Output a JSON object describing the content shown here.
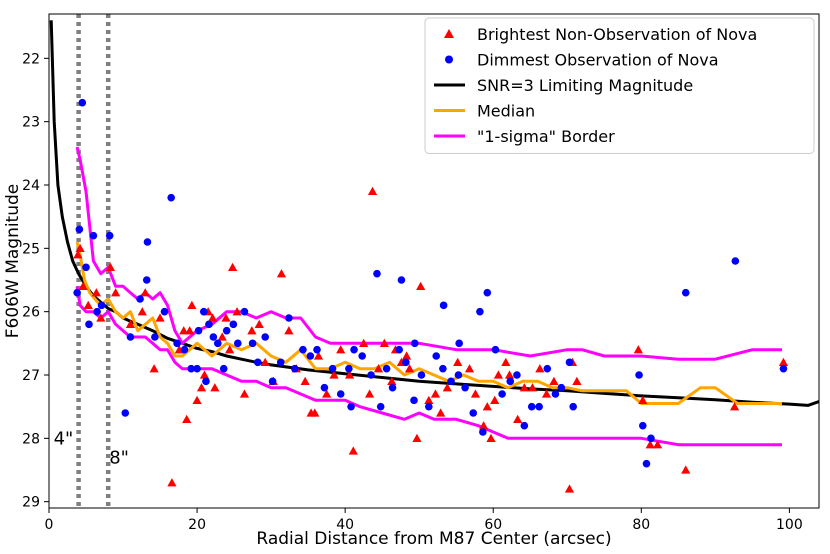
{
  "chart_data": {
    "type": "scatter",
    "xlabel": "Radial Distance from M87 Center (arcsec)",
    "ylabel": "F606W Magnitude",
    "xlim": [
      0,
      104
    ],
    "ylim": [
      29.1,
      21.3
    ],
    "y_inverted": true,
    "x_ticks": [
      0,
      20,
      40,
      60,
      80,
      100
    ],
    "y_ticks": [
      22,
      23,
      24,
      25,
      26,
      27,
      28,
      29
    ],
    "grid": false,
    "legend_position": "top-right",
    "legend": [
      {
        "label": "Brightest Non-Observation of Nova",
        "kind": "triangle",
        "color": "#ff0000"
      },
      {
        "label": "Dimmest Observation of Nova",
        "kind": "circle",
        "color": "#0000ff"
      },
      {
        "label": "SNR=3 Limiting Magnitude",
        "kind": "line",
        "color": "#000000"
      },
      {
        "label": "Median",
        "kind": "line",
        "color": "#ffa500"
      },
      {
        "label": "\"1-sigma\" Border",
        "kind": "line",
        "color": "#ff00ff"
      }
    ],
    "annotations": [
      {
        "text": "4\"",
        "x": 4,
        "y": 28.0
      },
      {
        "text": "8\"",
        "x": 8,
        "y": 28.3
      }
    ],
    "vlines": [
      4,
      8
    ],
    "series": [
      {
        "name": "Brightest Non-Observation of Nova",
        "marker": "triangle",
        "points": [
          [
            3.9,
            25.1
          ],
          [
            4.2,
            25.0
          ],
          [
            4.6,
            25.6
          ],
          [
            5.3,
            25.9
          ],
          [
            6.4,
            25.7
          ],
          [
            7.0,
            26.1
          ],
          [
            8.3,
            25.3
          ],
          [
            9.0,
            25.7
          ],
          [
            11.0,
            26.2
          ],
          [
            12.6,
            26.0
          ],
          [
            13.0,
            25.7
          ],
          [
            14.2,
            26.9
          ],
          [
            15.0,
            26.1
          ],
          [
            16.6,
            28.7
          ],
          [
            17.6,
            26.6
          ],
          [
            18.2,
            26.3
          ],
          [
            18.6,
            27.7
          ],
          [
            19.0,
            26.3
          ],
          [
            19.3,
            25.9
          ],
          [
            20.0,
            27.4
          ],
          [
            20.6,
            27.2
          ],
          [
            21.0,
            27.0
          ],
          [
            21.5,
            26.0
          ],
          [
            22.1,
            26.1
          ],
          [
            22.4,
            27.2
          ],
          [
            23.4,
            26.4
          ],
          [
            23.9,
            26.1
          ],
          [
            24.4,
            26.6
          ],
          [
            24.8,
            25.3
          ],
          [
            25.4,
            26.0
          ],
          [
            26.4,
            27.3
          ],
          [
            27.4,
            26.3
          ],
          [
            28.4,
            26.2
          ],
          [
            29.2,
            26.8
          ],
          [
            30.3,
            27.1
          ],
          [
            31.4,
            25.4
          ],
          [
            32.4,
            26.3
          ],
          [
            33.4,
            26.9
          ],
          [
            34.6,
            27.1
          ],
          [
            35.4,
            27.6
          ],
          [
            35.9,
            27.6
          ],
          [
            36.4,
            26.7
          ],
          [
            37.5,
            27.3
          ],
          [
            38.5,
            27.0
          ],
          [
            39.4,
            26.6
          ],
          [
            40.6,
            27.0
          ],
          [
            41.1,
            28.2
          ],
          [
            42.5,
            26.5
          ],
          [
            43.3,
            27.3
          ],
          [
            43.7,
            24.1
          ],
          [
            44.5,
            26.9
          ],
          [
            45.3,
            26.5
          ],
          [
            46.3,
            27.1
          ],
          [
            46.8,
            26.6
          ],
          [
            47.6,
            26.8
          ],
          [
            48.3,
            26.7
          ],
          [
            48.7,
            26.9
          ],
          [
            49.7,
            28.0
          ],
          [
            50.2,
            25.6
          ],
          [
            51.3,
            27.4
          ],
          [
            52.2,
            27.3
          ],
          [
            52.9,
            27.6
          ],
          [
            53.8,
            27.2
          ],
          [
            55.2,
            26.8
          ],
          [
            56.8,
            26.9
          ],
          [
            57.6,
            27.3
          ],
          [
            58.7,
            27.8
          ],
          [
            59.2,
            27.5
          ],
          [
            59.7,
            28.0
          ],
          [
            60.2,
            27.4
          ],
          [
            60.7,
            27.0
          ],
          [
            61.7,
            26.8
          ],
          [
            62.2,
            27.0
          ],
          [
            63.3,
            27.7
          ],
          [
            64.2,
            27.2
          ],
          [
            65.3,
            27.2
          ],
          [
            66.3,
            26.9
          ],
          [
            67.2,
            27.3
          ],
          [
            68.2,
            27.1
          ],
          [
            70.3,
            28.8
          ],
          [
            70.7,
            26.8
          ],
          [
            71.3,
            27.1
          ],
          [
            79.6,
            26.6
          ],
          [
            80.2,
            27.4
          ],
          [
            81.2,
            28.1
          ],
          [
            82.2,
            28.1
          ],
          [
            86.0,
            28.5
          ],
          [
            92.6,
            27.5
          ],
          [
            99.2,
            26.8
          ]
        ]
      },
      {
        "name": "Dimmest Observation of Nova",
        "marker": "circle",
        "points": [
          [
            3.8,
            25.7
          ],
          [
            4.1,
            24.7
          ],
          [
            4.5,
            22.7
          ],
          [
            5.0,
            25.3
          ],
          [
            5.4,
            26.2
          ],
          [
            6.0,
            24.8
          ],
          [
            6.5,
            26.0
          ],
          [
            7.1,
            25.9
          ],
          [
            8.2,
            24.8
          ],
          [
            10.3,
            27.6
          ],
          [
            11.0,
            26.4
          ],
          [
            12.3,
            25.8
          ],
          [
            13.2,
            25.5
          ],
          [
            13.3,
            24.9
          ],
          [
            14.3,
            26.4
          ],
          [
            15.6,
            26.0
          ],
          [
            16.5,
            24.2
          ],
          [
            17.3,
            26.5
          ],
          [
            18.3,
            26.6
          ],
          [
            19.2,
            26.9
          ],
          [
            20.0,
            26.9
          ],
          [
            20.2,
            26.3
          ],
          [
            20.9,
            26.0
          ],
          [
            21.2,
            27.1
          ],
          [
            21.6,
            26.2
          ],
          [
            22.2,
            26.4
          ],
          [
            22.8,
            26.5
          ],
          [
            23.6,
            26.9
          ],
          [
            24.0,
            26.3
          ],
          [
            24.9,
            26.2
          ],
          [
            25.5,
            26.5
          ],
          [
            26.4,
            26.0
          ],
          [
            27.5,
            26.5
          ],
          [
            28.2,
            26.8
          ],
          [
            29.2,
            26.4
          ],
          [
            30.2,
            27.1
          ],
          [
            31.3,
            26.8
          ],
          [
            32.4,
            26.1
          ],
          [
            33.2,
            26.9
          ],
          [
            34.3,
            26.6
          ],
          [
            35.3,
            26.7
          ],
          [
            36.2,
            26.6
          ],
          [
            37.2,
            27.2
          ],
          [
            38.3,
            26.9
          ],
          [
            39.4,
            27.3
          ],
          [
            40.5,
            26.9
          ],
          [
            40.8,
            27.5
          ],
          [
            41.2,
            26.6
          ],
          [
            42.3,
            26.7
          ],
          [
            43.5,
            27.0
          ],
          [
            44.3,
            25.4
          ],
          [
            44.8,
            27.5
          ],
          [
            45.6,
            26.9
          ],
          [
            46.4,
            27.2
          ],
          [
            47.3,
            26.6
          ],
          [
            47.6,
            25.5
          ],
          [
            48.2,
            26.8
          ],
          [
            49.3,
            27.4
          ],
          [
            49.4,
            26.5
          ],
          [
            50.3,
            27.0
          ],
          [
            51.3,
            27.5
          ],
          [
            52.3,
            26.7
          ],
          [
            53.2,
            26.9
          ],
          [
            53.3,
            25.9
          ],
          [
            54.3,
            27.1
          ],
          [
            55.3,
            27.0
          ],
          [
            55.4,
            26.5
          ],
          [
            56.2,
            27.2
          ],
          [
            57.3,
            27.6
          ],
          [
            58.2,
            26.0
          ],
          [
            58.6,
            27.9
          ],
          [
            59.2,
            25.7
          ],
          [
            60.3,
            26.6
          ],
          [
            61.2,
            27.3
          ],
          [
            62.3,
            27.1
          ],
          [
            63.2,
            27.0
          ],
          [
            64.2,
            27.8
          ],
          [
            65.2,
            27.5
          ],
          [
            66.2,
            27.5
          ],
          [
            67.3,
            26.9
          ],
          [
            68.4,
            27.3
          ],
          [
            69.2,
            27.2
          ],
          [
            70.3,
            26.8
          ],
          [
            70.8,
            27.5
          ],
          [
            79.7,
            27.0
          ],
          [
            80.2,
            27.8
          ],
          [
            80.7,
            28.4
          ],
          [
            81.3,
            28.0
          ],
          [
            86.0,
            25.7
          ],
          [
            92.7,
            25.2
          ],
          [
            99.2,
            26.9
          ]
        ]
      },
      {
        "name": "SNR=3 Limiting Magnitude",
        "marker": "line",
        "x": [
          0.3,
          0.7,
          1.2,
          1.8,
          2.5,
          3.2,
          4.0,
          5.0,
          6.0,
          7.0,
          8.0,
          9.0,
          10.0,
          11.0,
          12.0,
          14.0,
          16.0,
          18.0,
          20.0,
          22.0,
          24.0,
          26.0,
          28.0,
          30.0,
          35.0,
          40.0,
          45.0,
          50.0,
          55.0,
          60.0,
          65.0,
          70.0,
          75.0,
          80.0,
          85.0,
          90.0,
          95.0,
          100.0,
          102.5,
          104.0
        ],
        "y": [
          21.4,
          23.0,
          24.0,
          24.5,
          24.9,
          25.2,
          25.4,
          25.6,
          25.75,
          25.85,
          25.95,
          26.0,
          26.1,
          26.15,
          26.2,
          26.3,
          26.42,
          26.5,
          26.58,
          26.63,
          26.7,
          26.75,
          26.8,
          26.84,
          26.92,
          26.98,
          27.04,
          27.1,
          27.14,
          27.18,
          27.22,
          27.25,
          27.29,
          27.33,
          27.36,
          27.39,
          27.43,
          27.46,
          27.48,
          27.42
        ]
      },
      {
        "name": "Median",
        "marker": "line",
        "x": [
          3.8,
          4.2,
          4.8,
          5.5,
          6.2,
          7.0,
          8.0,
          9.0,
          10.0,
          11.0,
          12.0,
          13.0,
          14.0,
          15.0,
          16.0,
          17.0,
          18.0,
          20.0,
          22.0,
          24.0,
          26.0,
          28.0,
          30.0,
          32.0,
          34.0,
          36.0,
          38.0,
          40.0,
          42.0,
          44.0,
          46.0,
          48.0,
          50.0,
          52.0,
          54.0,
          56.0,
          58.0,
          60.0,
          62.0,
          64.0,
          66.0,
          68.0,
          70.0,
          72.0,
          75.0,
          78.0,
          80.0,
          85.0,
          88.0,
          90.0,
          93.0,
          96.0,
          99.0
        ],
        "y": [
          24.9,
          25.1,
          25.5,
          25.7,
          25.8,
          25.9,
          25.8,
          26.0,
          26.1,
          26.0,
          26.3,
          26.2,
          26.1,
          26.4,
          26.5,
          26.7,
          26.7,
          26.5,
          26.7,
          26.5,
          26.6,
          26.5,
          26.7,
          26.8,
          26.6,
          26.9,
          26.9,
          26.8,
          26.9,
          26.9,
          26.8,
          27.0,
          26.9,
          27.0,
          27.1,
          27.0,
          27.1,
          27.1,
          27.2,
          27.1,
          27.1,
          27.2,
          27.2,
          27.25,
          27.25,
          27.25,
          27.45,
          27.45,
          27.2,
          27.2,
          27.45,
          27.45,
          27.45
        ]
      },
      {
        "name": "\"1-sigma\" Border (upper)",
        "marker": "line",
        "x": [
          3.8,
          4.2,
          5.0,
          6.0,
          7.0,
          8.0,
          9.0,
          10.0,
          11.0,
          12.0,
          13.0,
          14.0,
          15.0,
          16.0,
          17.0,
          18.0,
          20.0,
          22.0,
          24.0,
          26.0,
          28.0,
          30.0,
          32.0,
          34.0,
          36.0,
          38.0,
          40.0,
          45.0,
          50.0,
          55.0,
          60.0,
          65.0,
          70.0,
          72.0,
          75.0,
          80.0,
          85.0,
          90.0,
          95.0,
          99.0
        ],
        "y": [
          23.4,
          23.6,
          24.1,
          25.2,
          25.4,
          25.3,
          25.6,
          25.6,
          25.7,
          25.8,
          25.7,
          25.8,
          25.7,
          25.9,
          26.3,
          26.5,
          26.3,
          26.2,
          26.0,
          26.0,
          26.1,
          26.0,
          26.1,
          26.1,
          26.4,
          26.5,
          26.5,
          26.5,
          26.5,
          26.6,
          26.6,
          26.7,
          26.6,
          26.6,
          26.7,
          26.7,
          26.75,
          26.75,
          26.6,
          26.6
        ]
      },
      {
        "name": "\"1-sigma\" Border (lower)",
        "marker": "line",
        "x": [
          3.8,
          4.2,
          5.0,
          6.0,
          7.0,
          8.0,
          9.0,
          10.0,
          11.0,
          12.0,
          13.0,
          14.0,
          15.0,
          16.0,
          17.0,
          18.0,
          20.0,
          22.0,
          24.0,
          26.0,
          28.0,
          30.0,
          32.0,
          34.0,
          36.0,
          38.0,
          40.0,
          42.0,
          45.0,
          48.0,
          50.0,
          52.0,
          55.0,
          58.0,
          60.0,
          62.0,
          65.0,
          70.0,
          75.0,
          80.0,
          85.0,
          90.0,
          95.0,
          99.0
        ],
        "y": [
          25.6,
          25.9,
          26.0,
          26.0,
          26.1,
          26.0,
          26.2,
          26.3,
          26.4,
          26.4,
          26.4,
          26.5,
          26.6,
          26.6,
          26.8,
          26.9,
          26.9,
          26.9,
          27.0,
          27.1,
          27.1,
          27.2,
          27.2,
          27.3,
          27.4,
          27.4,
          27.4,
          27.5,
          27.6,
          27.7,
          27.6,
          27.7,
          27.7,
          27.8,
          27.9,
          28.0,
          28.0,
          28.0,
          28.0,
          28.0,
          28.1,
          28.1,
          28.1,
          28.1
        ]
      }
    ]
  }
}
